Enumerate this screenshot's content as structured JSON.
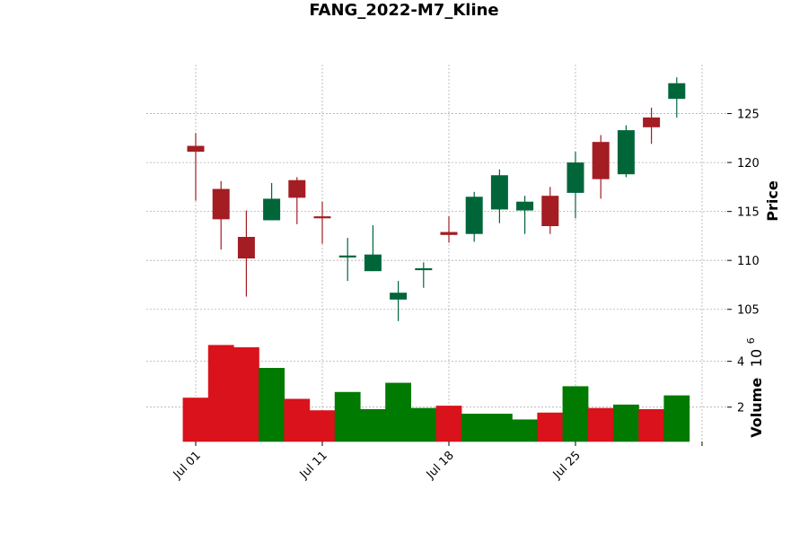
{
  "chart_data": {
    "type": "candlestick",
    "title": "FANG_2022-M7_Kline",
    "price_panel": {
      "ylabel": "Price",
      "ylim": [
        102.5,
        130.0
      ],
      "yticks": [
        105,
        110,
        115,
        120,
        125
      ],
      "grid": true
    },
    "volume_panel": {
      "ylabel": "Volume",
      "exponent_label": "10",
      "exponent": "6",
      "ylim": [
        0.5,
        5.2
      ],
      "yticks": [
        2,
        4
      ],
      "grid": true
    },
    "x_tick_labels": [
      {
        "index": 0,
        "label": "Jul 01"
      },
      {
        "index": 5,
        "label": "Jul 11"
      },
      {
        "index": 10,
        "label": "Jul 18"
      },
      {
        "index": 15,
        "label": "Jul 25"
      },
      {
        "index": 20,
        "label": ""
      }
    ],
    "colors": {
      "up_candle": "#00663a",
      "down_candle": "#a31d23",
      "up_volume": "#007a00",
      "down_volume": "#d9121b",
      "grid": "#b0b0b0"
    },
    "candles": [
      {
        "open": 121.7,
        "high": 123.0,
        "low": 116.1,
        "close": 121.1,
        "volume": 2.4
      },
      {
        "open": 117.3,
        "high": 118.1,
        "low": 111.1,
        "close": 114.2,
        "volume": 4.7
      },
      {
        "open": 112.4,
        "high": 115.1,
        "low": 106.3,
        "close": 110.2,
        "volume": 4.6
      },
      {
        "open": 114.1,
        "high": 117.9,
        "low": 114.1,
        "close": 116.3,
        "volume": 3.7
      },
      {
        "open": 118.2,
        "high": 118.5,
        "low": 113.7,
        "close": 116.4,
        "volume": 2.35
      },
      {
        "open": 114.5,
        "high": 116.0,
        "low": 111.7,
        "close": 114.3,
        "volume": 1.85
      },
      {
        "open": 110.3,
        "high": 112.3,
        "low": 107.9,
        "close": 110.5,
        "volume": 2.65
      },
      {
        "open": 108.9,
        "high": 113.6,
        "low": 108.9,
        "close": 110.6,
        "volume": 1.9
      },
      {
        "open": 106.0,
        "high": 107.9,
        "low": 103.8,
        "close": 106.7,
        "volume": 3.05
      },
      {
        "open": 109.0,
        "high": 109.8,
        "low": 107.2,
        "close": 109.2,
        "volume": 1.95
      },
      {
        "open": 112.9,
        "high": 114.5,
        "low": 111.8,
        "close": 112.6,
        "volume": 2.05
      },
      {
        "open": 112.7,
        "high": 117.0,
        "low": 111.9,
        "close": 116.5,
        "volume": 1.7
      },
      {
        "open": 115.2,
        "high": 119.3,
        "low": 113.8,
        "close": 118.7,
        "volume": 1.7
      },
      {
        "open": 115.1,
        "high": 116.6,
        "low": 112.7,
        "close": 116.0,
        "volume": 1.45
      },
      {
        "open": 116.6,
        "high": 117.5,
        "low": 112.7,
        "close": 113.5,
        "volume": 1.75
      },
      {
        "open": 116.9,
        "high": 121.1,
        "low": 114.3,
        "close": 120.0,
        "volume": 2.9
      },
      {
        "open": 122.1,
        "high": 122.8,
        "low": 116.3,
        "close": 118.3,
        "volume": 1.95
      },
      {
        "open": 118.8,
        "high": 123.8,
        "low": 118.5,
        "close": 123.3,
        "volume": 2.1
      },
      {
        "open": 124.6,
        "high": 125.6,
        "low": 121.9,
        "close": 123.6,
        "volume": 1.9
      },
      {
        "open": 126.5,
        "high": 128.7,
        "low": 124.6,
        "close": 128.1,
        "volume": 2.5
      }
    ]
  }
}
